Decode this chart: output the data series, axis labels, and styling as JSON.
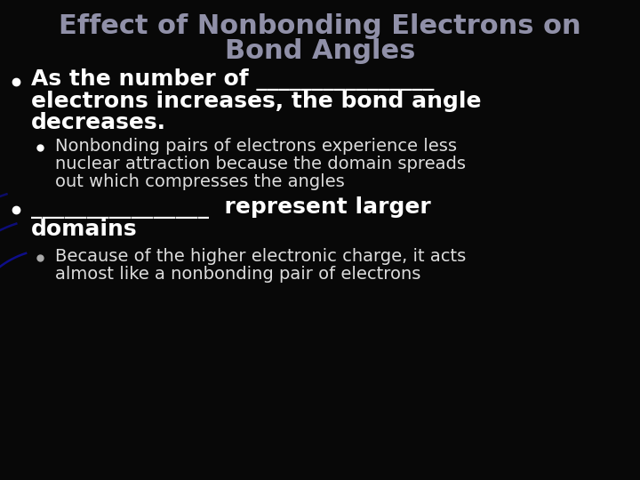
{
  "title_line1": "Effect of Nonbonding Electrons on",
  "title_line2": "Bond Angles",
  "title_color": "#9090a8",
  "background_color": "#080808",
  "bullet_color": "#ffffff",
  "text_color": "#ffffff",
  "sub_bullet_color": "#dddddd",
  "bullet1_line1": "As the number of ________________",
  "bullet1_line2": "electrons increases, the bond angle",
  "bullet1_line3": "decreases.",
  "sub_bullet1_line1": "Nonbonding pairs of electrons experience less",
  "sub_bullet1_line2": "nuclear attraction because the domain spreads",
  "sub_bullet1_line3": "out which compresses the angles",
  "bullet2_line1": "________________  represent larger",
  "bullet2_line2": "domains",
  "sub_bullet2_line1": "Because of the higher electronic charge, it acts",
  "sub_bullet2_line2": "almost like a nonbonding pair of electrons",
  "arc_color": "#1010aa",
  "title_fontsize": 22,
  "main_bullet_fontsize": 18,
  "sub_bullet_fontsize": 14
}
